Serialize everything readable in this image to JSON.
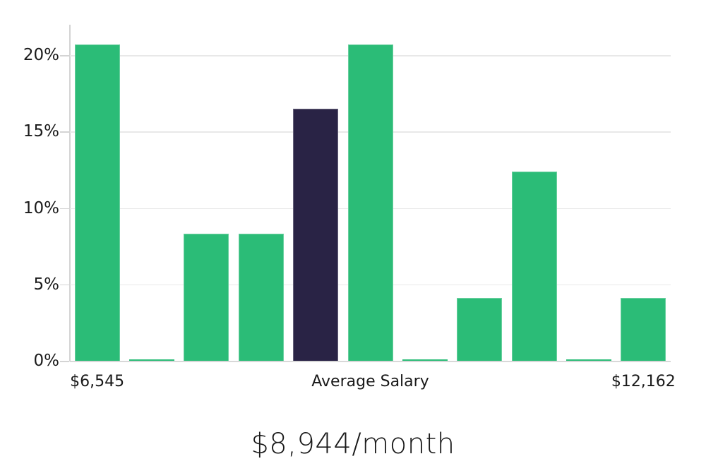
{
  "chart_data": {
    "type": "bar",
    "title": "$8,944/month",
    "values": [
      20.7,
      0.1,
      8.3,
      8.3,
      16.5,
      20.7,
      0.1,
      4.1,
      12.4,
      0.1,
      4.1
    ],
    "highlight_index": 4,
    "highlight_meaning": "Average Salary",
    "ylim": [
      0,
      22
    ],
    "grid": true,
    "legend_position": "none",
    "ylabel": "",
    "xlabel": "",
    "y_ticks": [
      {
        "value": 0,
        "label": "0%"
      },
      {
        "value": 5,
        "label": "5%"
      },
      {
        "value": 10,
        "label": "10%"
      },
      {
        "value": 15,
        "label": "15%"
      },
      {
        "value": 20,
        "label": "20%"
      }
    ],
    "x_ticks": [
      {
        "bar_index": 0,
        "label": "$6,545"
      },
      {
        "bar_index": 5,
        "label": "Average Salary"
      },
      {
        "bar_index": 10,
        "label": "$12,162"
      }
    ],
    "colors": {
      "bar": "#2bbc77",
      "highlight_bar": "#292345",
      "gridline": "#e8e8e8",
      "axis": "#d6d6d6",
      "text": "#1a1a1a"
    }
  }
}
